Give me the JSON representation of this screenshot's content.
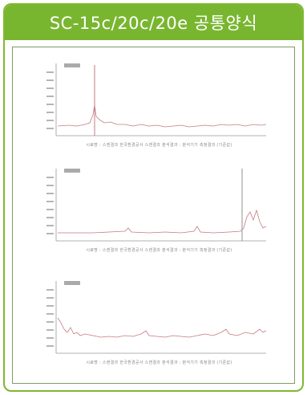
{
  "header": {
    "title": "SC-15c/20c/20e 공통양식"
  },
  "colors": {
    "banner": "#79b630",
    "trace": "#c47a80",
    "axis": "#999999"
  },
  "panels": [
    {
      "caption": "시료명 : 스캔결과 한국환경공사 스캔결과 분석결과 : 분석기기 측정결과 (기준값)"
    },
    {
      "caption": "시료명 : 스캔결과 한국환경공사 스캔결과 분석결과 : 분석기기 측정결과 (기준값)"
    },
    {
      "caption": "시료명 : 스캔결과 한국환경공사 스캔결과 분석결과 : 분석기기 측정결과 (기준값)"
    }
  ]
}
